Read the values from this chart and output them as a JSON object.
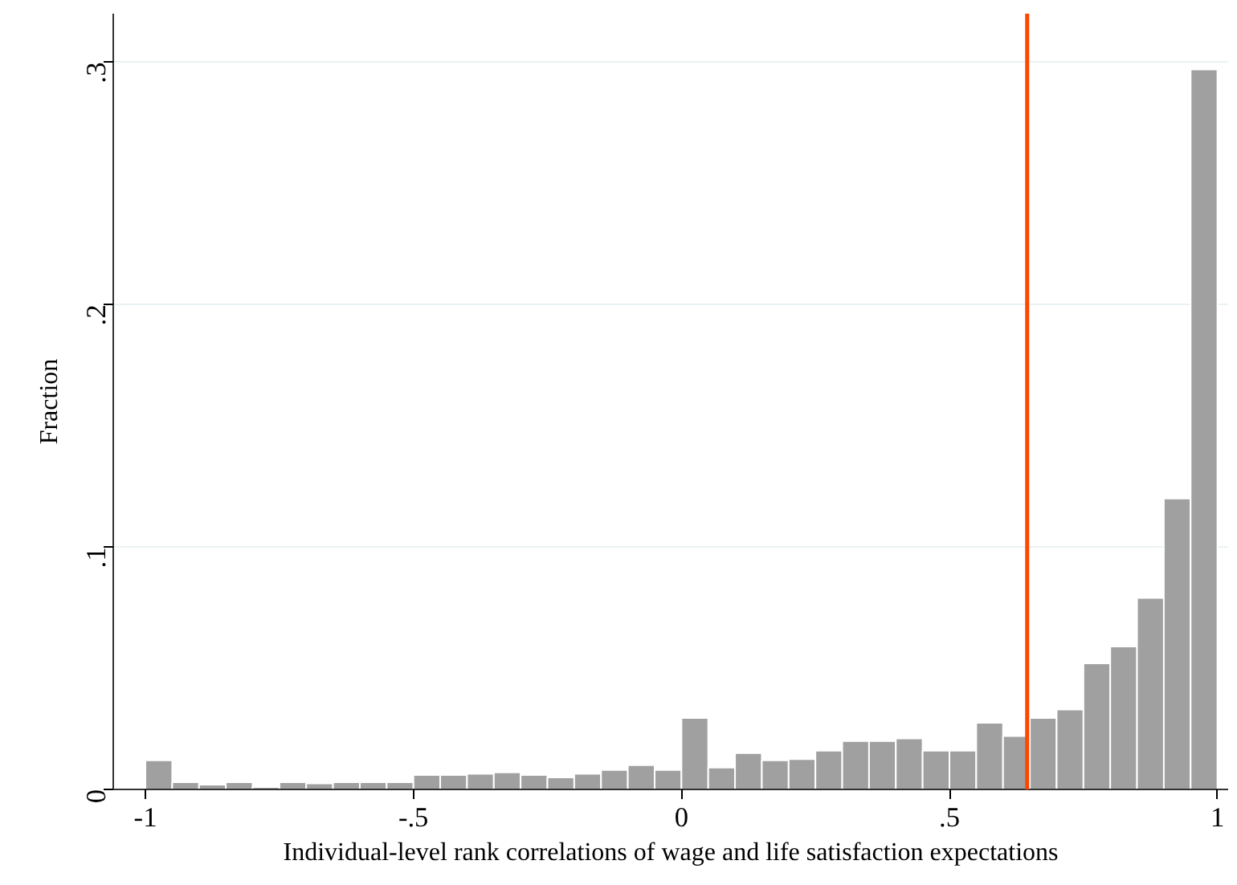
{
  "chart_data": {
    "type": "histogram",
    "xlabel": "Individual-level rank correlations of wage and life satisfaction expectations",
    "ylabel": "Fraction",
    "bins": [
      -1,
      -0.95,
      -0.9,
      -0.85,
      -0.8,
      -0.75,
      -0.7,
      -0.65,
      -0.6,
      -0.55,
      -0.5,
      -0.45,
      -0.4,
      -0.35,
      -0.3,
      -0.25,
      -0.2,
      -0.15,
      -0.1,
      -0.05,
      0,
      0.05,
      0.1,
      0.15,
      0.2,
      0.25,
      0.3,
      0.35,
      0.4,
      0.45,
      0.5,
      0.55,
      0.6,
      0.65,
      0.7,
      0.75,
      0.8,
      0.85,
      0.9,
      0.95,
      1
    ],
    "values": [
      0.012,
      0.003,
      0.002,
      0.003,
      0.001,
      0.003,
      0.0025,
      0.003,
      0.003,
      0.003,
      0.006,
      0.006,
      0.0065,
      0.007,
      0.006,
      0.005,
      0.0065,
      0.008,
      0.01,
      0.008,
      0.0295,
      0.009,
      0.015,
      0.012,
      0.0125,
      0.016,
      0.02,
      0.02,
      0.021,
      0.016,
      0.016,
      0.0275,
      0.022,
      0.0295,
      0.033,
      0.052,
      0.059,
      0.079,
      0.12,
      0.297
    ],
    "color": "#a0a0a0",
    "xlim": [
      -1.06,
      1.02
    ],
    "ylim": [
      0,
      0.32
    ],
    "xticks": [
      {
        "value": -1,
        "label": "-1"
      },
      {
        "value": -0.5,
        "label": "-.5"
      },
      0,
      {
        "value": 0.5,
        "label": ".5"
      },
      1
    ],
    "yticks": [
      0,
      {
        "value": 0.1,
        "label": ".1"
      },
      {
        "value": 0.2,
        "label": ".2"
      },
      {
        "value": 0.3,
        "label": ".3"
      }
    ],
    "grid": "y",
    "ref_lines": [
      {
        "axis": "x",
        "value": 0.645,
        "label": null,
        "color": "#ff4500"
      }
    ]
  }
}
